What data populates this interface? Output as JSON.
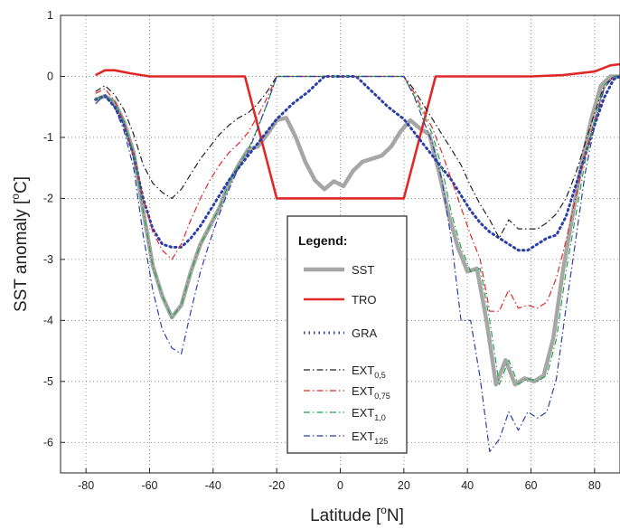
{
  "chart_data": {
    "type": "line",
    "xlabel": "Latitude [",
    "xlabel_sup": "o",
    "xlabel_suffix": "N]",
    "ylabel": "SST anomaly [",
    "ylabel_sup": "o",
    "ylabel_suffix": "C]",
    "xlim": [
      -88,
      88
    ],
    "ylim": [
      -6.5,
      1
    ],
    "xticks": [
      -80,
      -60,
      -40,
      -20,
      0,
      20,
      40,
      60,
      80
    ],
    "yticks": [
      1,
      0,
      -1,
      -2,
      -3,
      -4,
      -5,
      -6
    ],
    "grid": true,
    "legend_placement": "center",
    "legend_title": "Legend:",
    "series": [
      {
        "name": "SST",
        "subscript": "",
        "color": "#a6a6a6",
        "style": "solid",
        "x": [
          -77,
          -74,
          -71,
          -68,
          -65,
          -62,
          -59,
          -56,
          -53,
          -50,
          -47,
          -44,
          -41,
          -38,
          -35,
          -32,
          -29,
          -26,
          -23,
          -20,
          -17,
          -14,
          -11,
          -8,
          -5,
          -2,
          1,
          4,
          7,
          10,
          13,
          16,
          19,
          22,
          25,
          28,
          31,
          34,
          37,
          40,
          43,
          46,
          49,
          52,
          55,
          58,
          61,
          64,
          67,
          70,
          73,
          76,
          79,
          82,
          85,
          88
        ],
        "y": [
          -0.38,
          -0.32,
          -0.42,
          -0.75,
          -1.25,
          -2.2,
          -3.1,
          -3.6,
          -3.95,
          -3.75,
          -3.2,
          -2.75,
          -2.45,
          -2.15,
          -1.75,
          -1.45,
          -1.2,
          -1.15,
          -0.95,
          -0.72,
          -0.68,
          -1.0,
          -1.4,
          -1.7,
          -1.85,
          -1.72,
          -1.8,
          -1.55,
          -1.4,
          -1.35,
          -1.3,
          -1.15,
          -0.9,
          -0.72,
          -0.85,
          -0.95,
          -1.55,
          -2.25,
          -2.8,
          -3.2,
          -3.15,
          -4.0,
          -5.05,
          -4.65,
          -5.05,
          -4.95,
          -5.0,
          -4.9,
          -4.3,
          -3.2,
          -2.3,
          -1.4,
          -0.7,
          -0.15,
          0.0,
          0.0
        ]
      },
      {
        "name": "TRO",
        "subscript": "",
        "color": "#e02828",
        "style": "solid",
        "x": [
          -77,
          -74,
          -71,
          -66,
          -60,
          -50,
          -40,
          -30,
          -20,
          20,
          30,
          40,
          60,
          70,
          80,
          85,
          88
        ],
        "y": [
          0.02,
          0.1,
          0.1,
          0.05,
          0.0,
          0.0,
          0.0,
          0.0,
          -2.0,
          -2.0,
          0.0,
          0.0,
          0.0,
          0.02,
          0.08,
          0.18,
          0.2
        ]
      },
      {
        "name": "GRA",
        "subscript": "",
        "color": "#2a3fa8",
        "style": "dotted",
        "x": [
          -77,
          -74,
          -71,
          -68,
          -65,
          -62,
          -59,
          -56,
          -53,
          -50,
          -47,
          -44,
          -41,
          -38,
          -35,
          -32,
          -29,
          -26,
          -23,
          -20,
          -15,
          -10,
          -5,
          0,
          5,
          10,
          15,
          20,
          23,
          26,
          29,
          32,
          35,
          38,
          41,
          44,
          47,
          50,
          53,
          56,
          59,
          62,
          65,
          68,
          71,
          74,
          77,
          80,
          83,
          86,
          88
        ],
        "y": [
          -0.38,
          -0.32,
          -0.5,
          -0.8,
          -1.3,
          -2.0,
          -2.5,
          -2.75,
          -2.8,
          -2.8,
          -2.65,
          -2.45,
          -2.2,
          -1.95,
          -1.7,
          -1.5,
          -1.3,
          -1.1,
          -0.9,
          -0.7,
          -0.45,
          -0.25,
          0.0,
          0.0,
          0.0,
          -0.25,
          -0.5,
          -0.7,
          -0.9,
          -1.1,
          -1.3,
          -1.5,
          -1.7,
          -1.95,
          -2.2,
          -2.4,
          -2.55,
          -2.65,
          -2.75,
          -2.85,
          -2.85,
          -2.75,
          -2.65,
          -2.6,
          -2.3,
          -1.8,
          -1.3,
          -0.8,
          -0.35,
          -0.05,
          0.0
        ]
      },
      {
        "name": "EXT",
        "subscript": "0,5",
        "color": "#222222",
        "style": "dashdot",
        "x": [
          -77,
          -74,
          -71,
          -68,
          -65,
          -62,
          -59,
          -56,
          -53,
          -50,
          -47,
          -44,
          -41,
          -38,
          -35,
          -32,
          -29,
          -26,
          -23,
          -20,
          -15,
          -10,
          -5,
          0,
          5,
          10,
          15,
          20,
          23,
          26,
          29,
          32,
          35,
          38,
          41,
          44,
          47,
          50,
          53,
          56,
          59,
          62,
          65,
          68,
          71,
          74,
          77,
          80,
          83,
          86,
          88
        ],
        "y": [
          -0.25,
          -0.15,
          -0.3,
          -0.55,
          -0.95,
          -1.45,
          -1.75,
          -1.9,
          -2.0,
          -1.85,
          -1.6,
          -1.35,
          -1.15,
          -0.95,
          -0.8,
          -0.68,
          -0.6,
          -0.45,
          -0.25,
          0.0,
          0.0,
          0.0,
          0.0,
          0.0,
          0.0,
          0.0,
          0.0,
          0.0,
          -0.2,
          -0.45,
          -0.7,
          -0.95,
          -1.2,
          -1.45,
          -1.8,
          -2.1,
          -2.35,
          -2.65,
          -2.35,
          -2.5,
          -2.5,
          -2.5,
          -2.4,
          -2.25,
          -2.0,
          -1.6,
          -1.1,
          -0.6,
          -0.15,
          0.0,
          0.0
        ]
      },
      {
        "name": "EXT",
        "subscript": "0,75",
        "color": "#e02828",
        "style": "dashdot",
        "x": [
          -77,
          -74,
          -71,
          -68,
          -65,
          -62,
          -59,
          -56,
          -53,
          -50,
          -47,
          -44,
          -41,
          -38,
          -35,
          -32,
          -29,
          -26,
          -23,
          -20,
          -15,
          -10,
          -5,
          0,
          5,
          10,
          15,
          20,
          23,
          26,
          29,
          32,
          35,
          38,
          41,
          44,
          47,
          50,
          53,
          56,
          59,
          62,
          65,
          68,
          71,
          74,
          77,
          80,
          83,
          86,
          88
        ],
        "y": [
          -0.28,
          -0.2,
          -0.4,
          -0.75,
          -1.3,
          -2.0,
          -2.55,
          -2.85,
          -3.0,
          -2.75,
          -2.35,
          -2.0,
          -1.7,
          -1.45,
          -1.25,
          -1.1,
          -0.92,
          -0.65,
          -0.35,
          0.0,
          0.0,
          0.0,
          0.0,
          0.0,
          0.0,
          0.0,
          0.0,
          0.0,
          -0.25,
          -0.55,
          -0.85,
          -1.25,
          -1.7,
          -2.15,
          -2.6,
          -3.0,
          -3.85,
          -3.85,
          -3.5,
          -3.8,
          -3.75,
          -3.8,
          -3.7,
          -3.3,
          -2.7,
          -2.0,
          -1.3,
          -0.7,
          -0.2,
          0.0,
          0.0
        ]
      },
      {
        "name": "EXT",
        "subscript": "1,0",
        "color": "#22a24a",
        "style": "dashdot",
        "x": [
          -77,
          -74,
          -71,
          -68,
          -65,
          -62,
          -59,
          -56,
          -53,
          -50,
          -47,
          -44,
          -41,
          -38,
          -35,
          -32,
          -29,
          -26,
          -23,
          -20,
          -15,
          -10,
          -5,
          0,
          5,
          10,
          15,
          20,
          23,
          26,
          29,
          32,
          35,
          38,
          41,
          44,
          47,
          50,
          53,
          56,
          59,
          62,
          65,
          68,
          71,
          74,
          77,
          80,
          83,
          86,
          88
        ],
        "y": [
          -0.38,
          -0.32,
          -0.42,
          -0.75,
          -1.25,
          -2.2,
          -3.1,
          -3.6,
          -3.95,
          -3.75,
          -3.2,
          -2.75,
          -2.45,
          -2.15,
          -1.75,
          -1.45,
          -1.2,
          -0.85,
          -0.45,
          0.0,
          0.0,
          0.0,
          0.0,
          0.0,
          0.0,
          0.0,
          0.0,
          0.0,
          -0.3,
          -0.6,
          -0.95,
          -1.5,
          -2.25,
          -2.8,
          -3.2,
          -3.15,
          -4.0,
          -5.05,
          -4.65,
          -5.05,
          -4.95,
          -5.0,
          -4.9,
          -4.3,
          -3.2,
          -2.3,
          -1.4,
          -0.7,
          -0.15,
          0.0,
          0.0
        ]
      },
      {
        "name": "EXT",
        "subscript": "125",
        "color": "#2a3fa8",
        "style": "dashdot",
        "x": [
          -77,
          -74,
          -71,
          -68,
          -65,
          -62,
          -59,
          -56,
          -53,
          -50,
          -47,
          -44,
          -41,
          -38,
          -35,
          -32,
          -29,
          -26,
          -23,
          -20,
          -15,
          -10,
          -5,
          0,
          5,
          10,
          15,
          20,
          23,
          26,
          29,
          32,
          35,
          38,
          41,
          44,
          47,
          50,
          53,
          56,
          59,
          62,
          65,
          68,
          71,
          74,
          77,
          80,
          83,
          86,
          88
        ],
        "y": [
          -0.45,
          -0.3,
          -0.5,
          -0.9,
          -1.5,
          -2.6,
          -3.5,
          -4.15,
          -4.45,
          -4.55,
          -3.85,
          -3.2,
          -2.7,
          -2.25,
          -1.85,
          -1.5,
          -1.25,
          -0.85,
          -0.45,
          0.0,
          0.0,
          0.0,
          0.0,
          0.0,
          0.0,
          0.0,
          0.0,
          0.0,
          -0.3,
          -0.7,
          -1.1,
          -1.7,
          -2.7,
          -4.0,
          -4.0,
          -4.95,
          -6.15,
          -5.95,
          -5.5,
          -5.8,
          -5.5,
          -5.6,
          -5.5,
          -4.95,
          -3.8,
          -2.7,
          -1.6,
          -0.8,
          -0.2,
          0.0,
          0.0
        ]
      }
    ]
  }
}
